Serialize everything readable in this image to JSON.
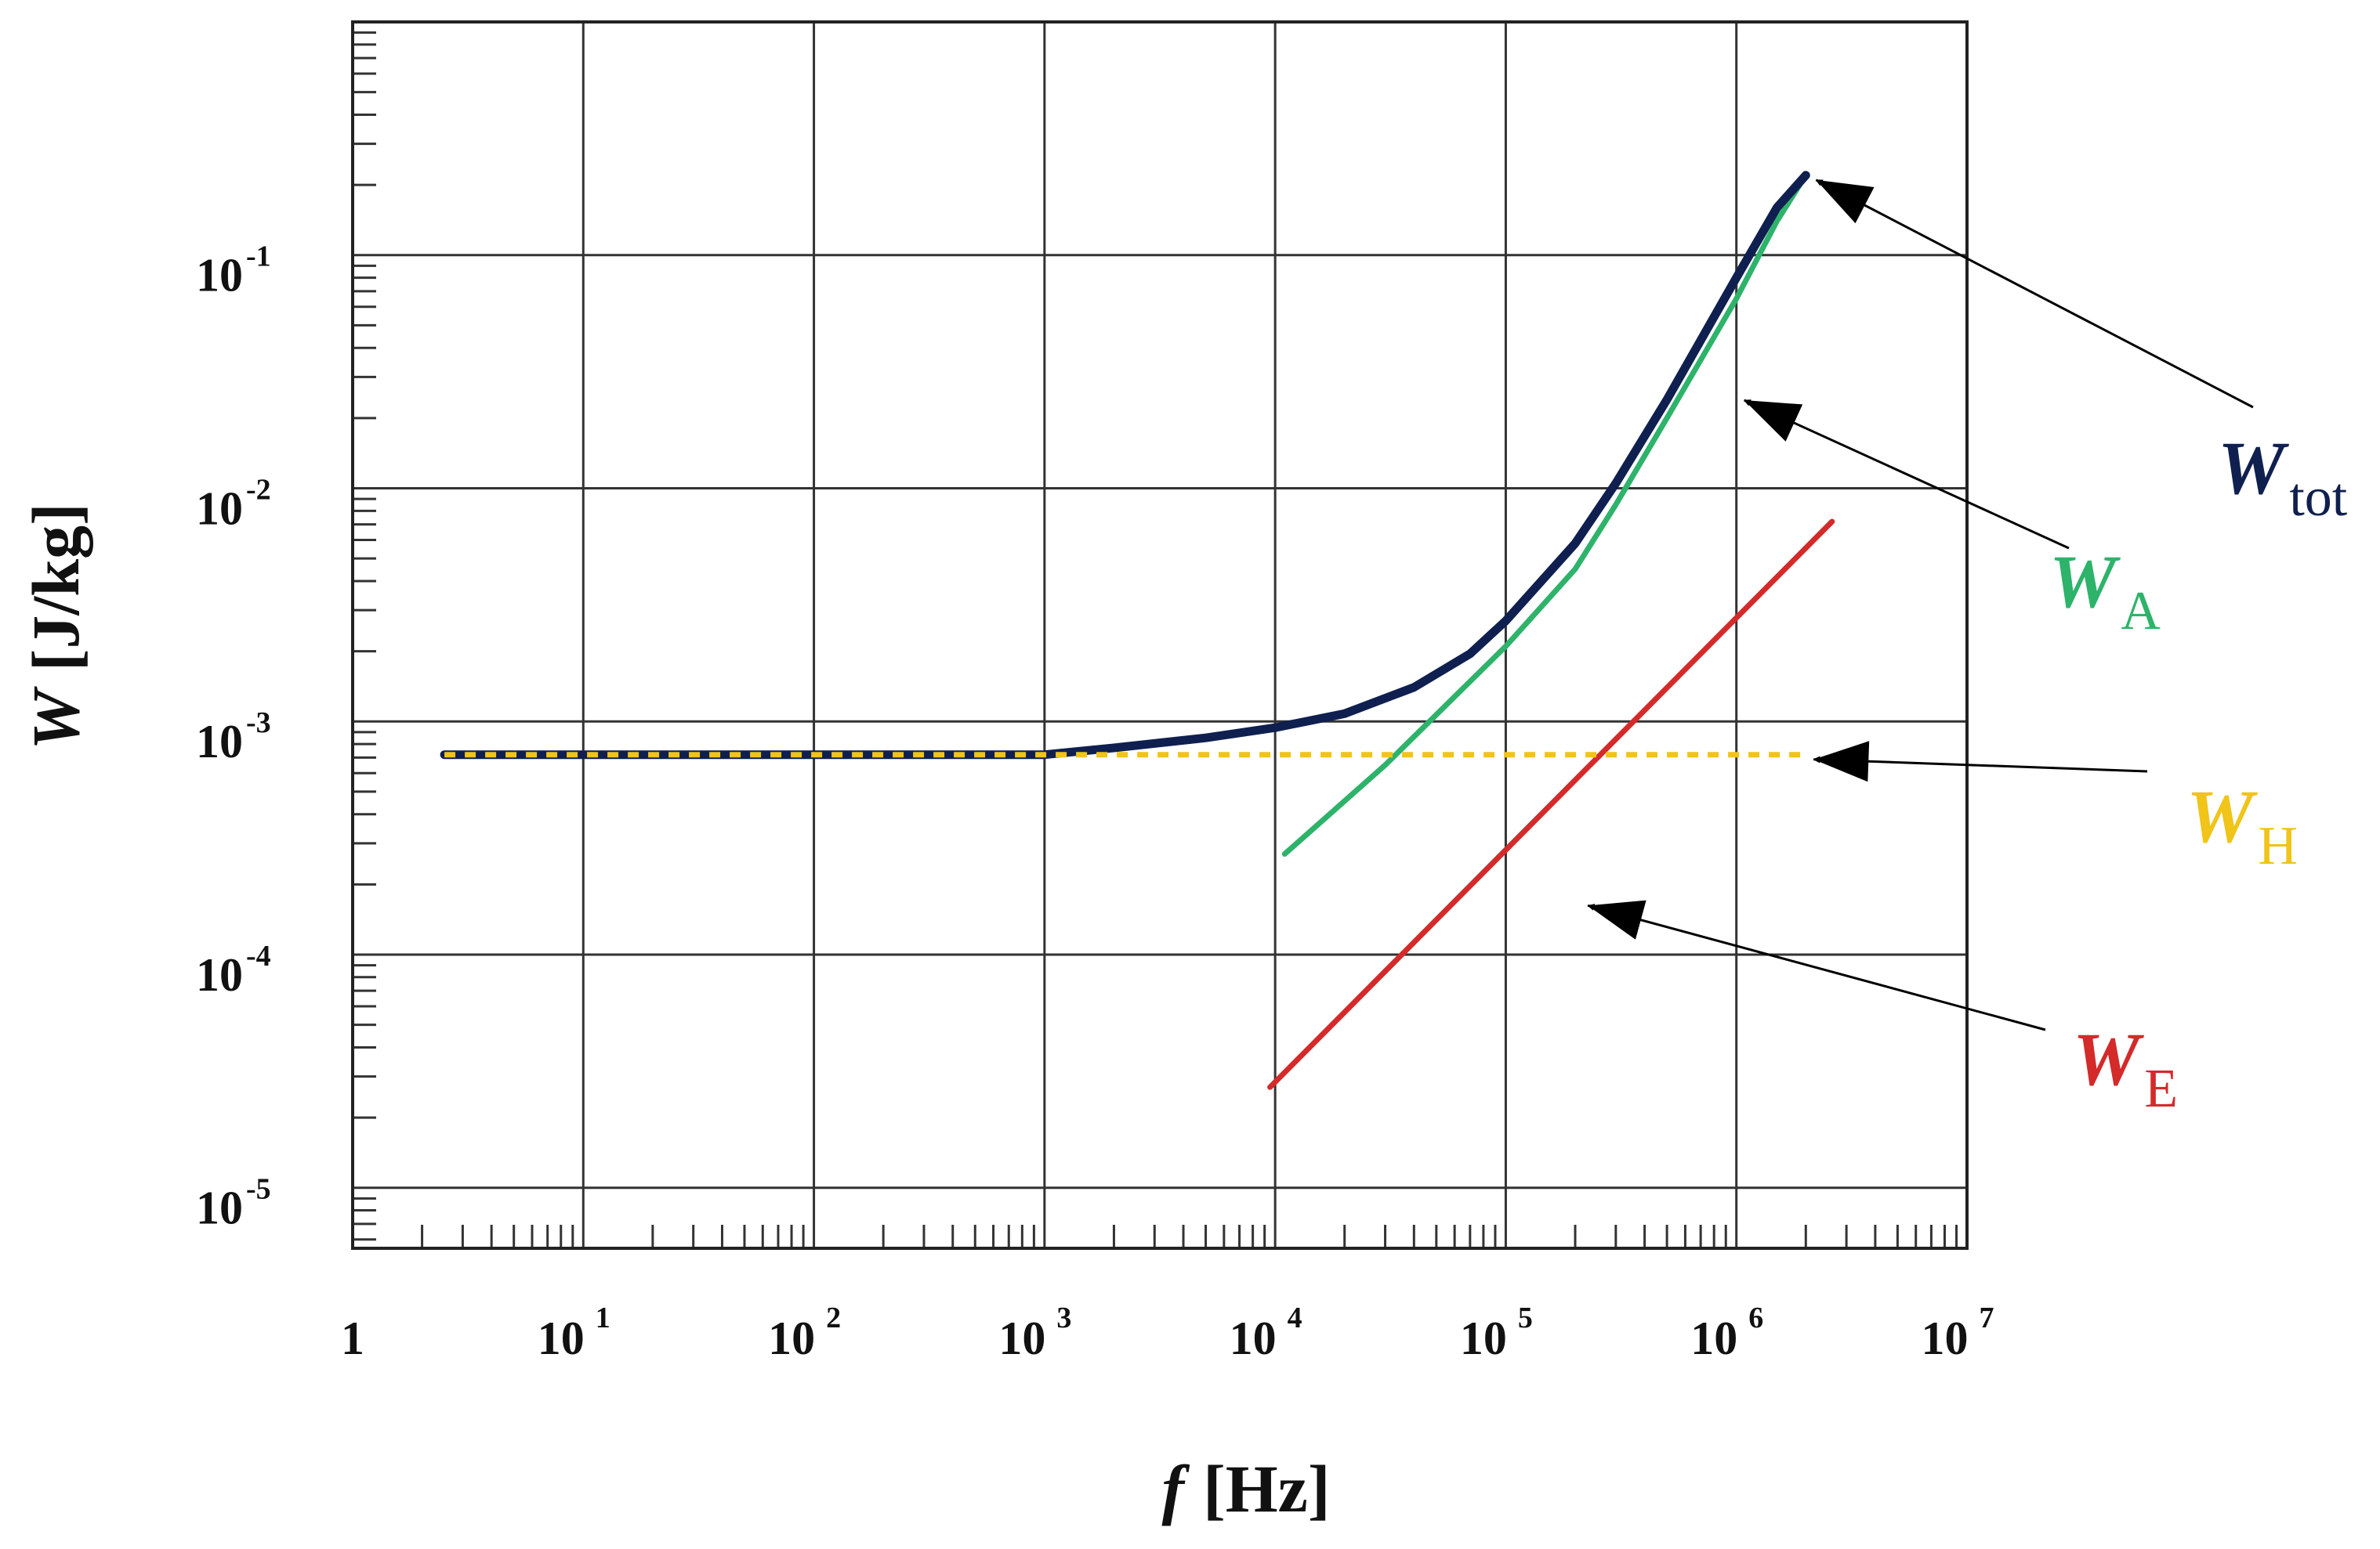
{
  "chart_data": {
    "type": "line",
    "xlabel_var": "f",
    "xlabel_unit": "[Hz]",
    "ylabel_var": "W",
    "ylabel_unit": "[J/kg]",
    "xscale": "log",
    "yscale": "log",
    "xlim": [
      1,
      10000000
    ],
    "ylim": [
      5.5e-06,
      1
    ],
    "grid": true,
    "x_ticks": [
      {
        "value": 1,
        "base": "1",
        "exp": ""
      },
      {
        "value": 10,
        "base": "10",
        "exp": "1"
      },
      {
        "value": 100,
        "base": "10",
        "exp": "2"
      },
      {
        "value": 1000,
        "base": "10",
        "exp": "3"
      },
      {
        "value": 10000,
        "base": "10",
        "exp": "4"
      },
      {
        "value": 100000,
        "base": "10",
        "exp": "5"
      },
      {
        "value": 1000000,
        "base": "10",
        "exp": "6"
      },
      {
        "value": 10000000,
        "base": "10",
        "exp": "7"
      }
    ],
    "y_ticks": [
      {
        "value": 0.1,
        "base": "10",
        "exp": "-1"
      },
      {
        "value": 0.01,
        "base": "10",
        "exp": "-2"
      },
      {
        "value": 0.001,
        "base": "10",
        "exp": "-3"
      },
      {
        "value": 0.0001,
        "base": "10",
        "exp": "-4"
      },
      {
        "value": 1e-05,
        "base": "10",
        "exp": "-5"
      }
    ],
    "series": [
      {
        "name": "W_tot",
        "label_main": "W",
        "label_sub": "tot",
        "color": "#0f1f4f",
        "style": "solid",
        "x": [
          2.5,
          10,
          100,
          1000,
          2000,
          5000,
          10000,
          20000,
          40000,
          70000,
          100000,
          200000,
          300000,
          500000,
          1000000,
          1500000,
          2000000
        ],
        "y": [
          0.00072,
          0.00072,
          0.00072,
          0.00072,
          0.00077,
          0.00085,
          0.00094,
          0.00108,
          0.0014,
          0.00195,
          0.0027,
          0.0058,
          0.0105,
          0.024,
          0.08,
          0.16,
          0.22
        ]
      },
      {
        "name": "W_A",
        "label_main": "W",
        "label_sub": "A",
        "color": "#2db36a",
        "style": "solid",
        "x": [
          11000,
          30000,
          100000,
          200000,
          300000,
          500000,
          1000000,
          1500000,
          2000000
        ],
        "y": [
          0.00027,
          0.00065,
          0.0021,
          0.0045,
          0.0085,
          0.02,
          0.065,
          0.14,
          0.22
        ]
      },
      {
        "name": "W_H",
        "label_main": "W",
        "label_sub": "H",
        "color": "#f0c419",
        "style": "dashed",
        "x": [
          2.5,
          2000000
        ],
        "y": [
          0.00072,
          0.00072
        ]
      },
      {
        "name": "W_E",
        "label_main": "W",
        "label_sub": "E",
        "color": "#d42a2a",
        "style": "solid",
        "x": [
          9500,
          2600000
        ],
        "y": [
          2.7e-05,
          0.0072
        ]
      }
    ],
    "annotations": [
      {
        "series": "W_tot",
        "point_x": 2050000,
        "point_y": 0.22
      },
      {
        "series": "W_A",
        "point_x": 1000000,
        "point_y": 0.025
      },
      {
        "series": "W_H",
        "point_x": 2000000,
        "point_y": 0.00072
      },
      {
        "series": "W_E",
        "point_x": 210000,
        "point_y": 0.00017
      }
    ]
  }
}
